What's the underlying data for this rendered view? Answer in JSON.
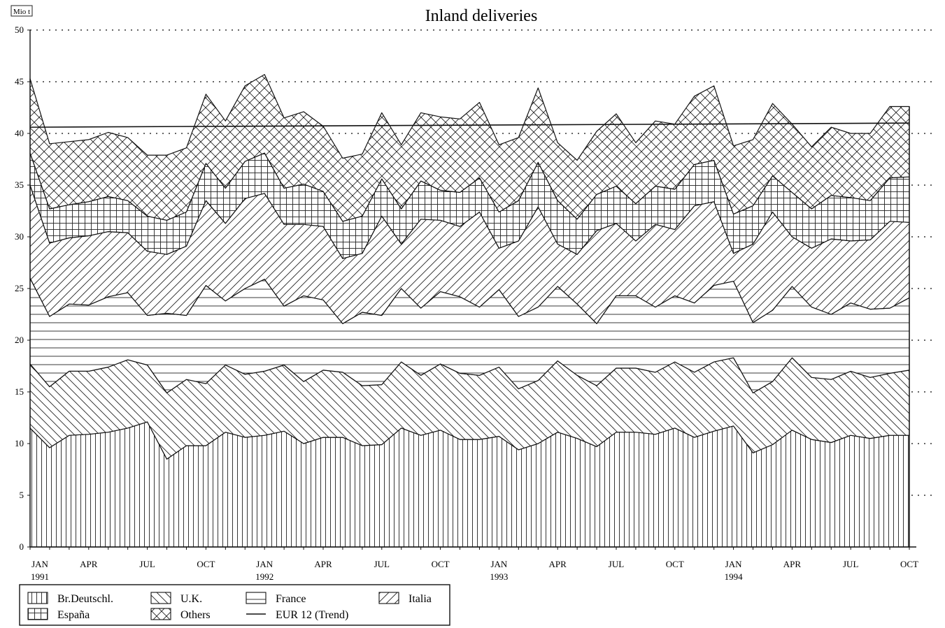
{
  "chart_data": {
    "type": "area",
    "title": "Inland deliveries",
    "unit": "Mio t",
    "ylim": [
      0,
      50
    ],
    "y_ticks": [
      "0",
      "5",
      "10",
      "15",
      "20",
      "25",
      "30",
      "35",
      "40",
      "45",
      "50"
    ],
    "x_tick_labels": [
      {
        "month": "JAN",
        "year": "1991",
        "index": 0
      },
      {
        "month": "APR",
        "year": "",
        "index": 3
      },
      {
        "month": "JUL",
        "year": "",
        "index": 6
      },
      {
        "month": "OCT",
        "year": "",
        "index": 9
      },
      {
        "month": "JAN",
        "year": "1992",
        "index": 12
      },
      {
        "month": "APR",
        "year": "",
        "index": 15
      },
      {
        "month": "JUL",
        "year": "",
        "index": 18
      },
      {
        "month": "OCT",
        "year": "",
        "index": 21
      },
      {
        "month": "JAN",
        "year": "1993",
        "index": 24
      },
      {
        "month": "APR",
        "year": "",
        "index": 27
      },
      {
        "month": "JUL",
        "year": "",
        "index": 30
      },
      {
        "month": "OCT",
        "year": "",
        "index": 33
      },
      {
        "month": "JAN",
        "year": "1994",
        "index": 36
      },
      {
        "month": "APR",
        "year": "",
        "index": 39
      },
      {
        "month": "JUL",
        "year": "",
        "index": 42
      },
      {
        "month": "OCT",
        "year": "",
        "index": 45
      }
    ],
    "x": [
      "1991-01",
      "1991-02",
      "1991-03",
      "1991-04",
      "1991-05",
      "1991-06",
      "1991-07",
      "1991-08",
      "1991-09",
      "1991-10",
      "1991-11",
      "1991-12",
      "1992-01",
      "1992-02",
      "1992-03",
      "1992-04",
      "1992-05",
      "1992-06",
      "1992-07",
      "1992-08",
      "1992-09",
      "1992-10",
      "1992-11",
      "1992-12",
      "1993-01",
      "1993-02",
      "1993-03",
      "1993-04",
      "1993-05",
      "1993-06",
      "1993-07",
      "1993-08",
      "1993-09",
      "1993-10",
      "1993-11",
      "1993-12",
      "1994-01",
      "1994-02",
      "1994-03",
      "1994-04",
      "1994-05",
      "1994-06",
      "1994-07",
      "1994-08",
      "1994-09",
      "1994-10"
    ],
    "stacked_boundaries_note_values": "cumulative top of each stacked layer in Mio t",
    "series": [
      {
        "name": "Br.Deutschl.",
        "pattern": "vertical",
        "values": [
          11.5,
          9.6,
          10.8,
          10.9,
          11.1,
          11.5,
          12.1,
          8.5,
          9.8,
          9.8,
          11.1,
          10.6,
          10.8,
          11.2,
          10.0,
          10.6,
          10.6,
          9.8,
          9.9,
          11.5,
          10.8,
          11.3,
          10.4,
          10.4,
          10.7,
          9.4,
          10.0,
          11.1,
          10.5,
          9.7,
          11.1,
          11.1,
          10.9,
          11.5,
          10.6,
          11.2,
          11.7,
          9.1,
          9.9,
          11.3,
          10.4,
          10.1,
          10.8,
          10.5,
          10.8,
          10.8
        ]
      },
      {
        "name": "U.K.",
        "pattern": "diag-back",
        "values": [
          17.7,
          15.5,
          17.0,
          17.0,
          17.4,
          18.1,
          17.6,
          14.9,
          16.2,
          15.8,
          17.6,
          16.7,
          17.0,
          17.6,
          16.0,
          17.1,
          16.9,
          15.6,
          15.7,
          17.9,
          16.6,
          17.7,
          16.8,
          16.6,
          17.4,
          15.3,
          16.1,
          18.0,
          16.6,
          15.6,
          17.3,
          17.3,
          16.9,
          17.9,
          16.9,
          17.9,
          18.3,
          14.9,
          16.0,
          18.3,
          16.4,
          16.2,
          17.0,
          16.4,
          16.8,
          17.1
        ]
      },
      {
        "name": "France",
        "pattern": "horizontal",
        "values": [
          26.0,
          22.3,
          23.5,
          23.4,
          24.2,
          24.6,
          22.4,
          22.6,
          22.4,
          25.3,
          23.8,
          25.0,
          25.9,
          23.3,
          24.3,
          23.9,
          21.6,
          22.7,
          22.4,
          25.0,
          23.1,
          24.7,
          24.2,
          23.2,
          24.9,
          22.3,
          23.2,
          25.2,
          23.5,
          21.6,
          24.3,
          24.3,
          23.2,
          24.3,
          23.6,
          25.3,
          25.7,
          21.7,
          22.9,
          25.2,
          23.2,
          22.5,
          23.6,
          23.0,
          23.1,
          24.1
        ]
      },
      {
        "name": "Italia",
        "pattern": "diag-fwd",
        "values": [
          35.0,
          29.4,
          29.9,
          30.1,
          30.5,
          30.4,
          28.6,
          28.3,
          29.1,
          33.5,
          31.3,
          33.7,
          34.2,
          31.2,
          31.2,
          31.0,
          27.9,
          28.4,
          32.0,
          29.3,
          31.7,
          31.6,
          31.0,
          32.4,
          28.9,
          29.6,
          32.9,
          29.3,
          28.3,
          30.6,
          31.3,
          29.6,
          31.2,
          30.7,
          33.0,
          33.4,
          28.4,
          29.3,
          32.4,
          30.0,
          28.9,
          29.8,
          29.6,
          29.7,
          31.5,
          31.4
        ]
      },
      {
        "name": "España",
        "pattern": "grid",
        "values": [
          38.1,
          32.7,
          33.1,
          33.4,
          33.9,
          33.5,
          32.0,
          31.6,
          32.4,
          37.1,
          34.7,
          37.3,
          38.1,
          34.7,
          35.1,
          34.4,
          31.5,
          32.0,
          35.6,
          32.7,
          35.4,
          34.5,
          34.3,
          35.7,
          32.4,
          33.5,
          37.2,
          33.5,
          31.7,
          34.1,
          34.9,
          33.2,
          34.9,
          34.6,
          37.0,
          37.4,
          32.2,
          33.0,
          35.9,
          34.3,
          32.7,
          34.0,
          33.8,
          33.5,
          35.7,
          35.8
        ]
      },
      {
        "name": "Others",
        "pattern": "cross",
        "values": [
          45.3,
          39.0,
          39.2,
          39.4,
          40.1,
          39.6,
          37.9,
          37.9,
          38.6,
          43.8,
          41.2,
          44.6,
          45.7,
          41.5,
          42.1,
          40.7,
          37.6,
          38.0,
          42.0,
          38.9,
          42.0,
          41.6,
          41.4,
          43.0,
          38.9,
          39.6,
          44.4,
          39.1,
          37.4,
          40.2,
          41.9,
          39.1,
          41.2,
          40.9,
          43.6,
          44.6,
          38.8,
          39.4,
          42.9,
          40.9,
          38.7,
          40.6,
          40.0,
          40.0,
          42.6,
          42.6
        ]
      },
      {
        "name": "EUR 12 (Trend)",
        "pattern": "line",
        "values_note": "trend line",
        "start": 40.6,
        "end": 41.0
      }
    ],
    "legend": [
      {
        "label": "Br.Deutschl.",
        "pattern": "vertical"
      },
      {
        "label": "U.K.",
        "pattern": "diag-back"
      },
      {
        "label": "France",
        "pattern": "horizontal"
      },
      {
        "label": "Italia",
        "pattern": "diag-fwd"
      },
      {
        "label": "España",
        "pattern": "grid"
      },
      {
        "label": "Others",
        "pattern": "cross"
      },
      {
        "label": "EUR 12 (Trend)",
        "pattern": "line"
      }
    ],
    "legend_position": "bottom-left",
    "grid": "dotted horizontal lines on right side"
  }
}
